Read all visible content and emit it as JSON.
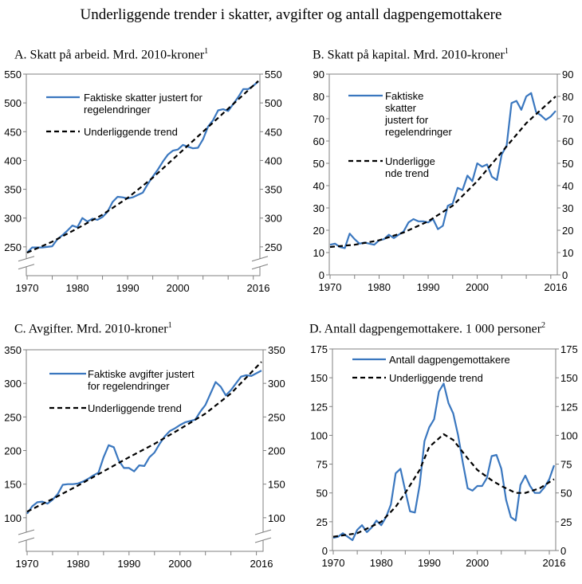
{
  "title": "Underliggende trender i skatter, avgifter og antall dagpengemottakere",
  "colors": {
    "actual": "#3a77bf",
    "trend": "#000000",
    "axis": "#808080"
  },
  "chart_data": [
    {
      "type": "line",
      "title": "A.  Skatt på arbeid. Mrd. 2010-kroner",
      "title_footnote": "1",
      "xlim": [
        1970,
        2016
      ],
      "x_tick_labels": [
        "1970",
        "1980",
        "1990",
        "2000",
        "2016"
      ],
      "ylim": [
        200,
        550
      ],
      "y_ticks": [
        250,
        300,
        350,
        400,
        450,
        500,
        550
      ],
      "axis_break": true,
      "grid": false,
      "dual_y_axis": true,
      "legend_position": "top-left",
      "series": [
        {
          "name": "Faktiske skatter justert for regelendringer",
          "style": "solid",
          "x": [
            1970,
            1971,
            1972,
            1973,
            1974,
            1975,
            1976,
            1977,
            1978,
            1979,
            1980,
            1981,
            1982,
            1983,
            1984,
            1985,
            1986,
            1987,
            1988,
            1989,
            1990,
            1991,
            1992,
            1993,
            1994,
            1995,
            1996,
            1997,
            1998,
            1999,
            2000,
            2001,
            2002,
            2003,
            2004,
            2005,
            2006,
            2007,
            2008,
            2009,
            2010,
            2011,
            2012,
            2013,
            2014,
            2015,
            2016
          ],
          "y": [
            240,
            249,
            249,
            249,
            250,
            251,
            263,
            270,
            278,
            287,
            284,
            300,
            294,
            299,
            297,
            302,
            311,
            328,
            337,
            336,
            334,
            336,
            340,
            344,
            359,
            372,
            384,
            398,
            410,
            417,
            419,
            427,
            424,
            421,
            422,
            437,
            459,
            470,
            487,
            489,
            486,
            498,
            510,
            524,
            524,
            530,
            537
          ]
        },
        {
          "name": "Underliggende trend",
          "style": "dashed",
          "x": [
            1970,
            1975,
            1980,
            1985,
            1990,
            1995,
            2000,
            2005,
            2010,
            2016
          ],
          "y": [
            240,
            259,
            282,
            306,
            335,
            370,
            410,
            450,
            490,
            538
          ]
        }
      ]
    },
    {
      "type": "line",
      "title": "B.  Skatt på kapital. Mrd. 2010-kroner",
      "title_footnote": "1",
      "xlim": [
        1970,
        2016
      ],
      "x_tick_labels": [
        "1970",
        "1980",
        "1990",
        "2000",
        "2016"
      ],
      "ylim": [
        0,
        90
      ],
      "y_ticks": [
        0,
        10,
        20,
        30,
        40,
        50,
        60,
        70,
        80,
        90
      ],
      "axis_break": false,
      "grid": false,
      "dual_y_axis": true,
      "legend_position": "top-left",
      "series": [
        {
          "name": "Faktiske skatter justert for regelendringer",
          "style": "solid",
          "x": [
            1970,
            1971,
            1972,
            1973,
            1974,
            1975,
            1976,
            1977,
            1978,
            1979,
            1980,
            1981,
            1982,
            1983,
            1984,
            1985,
            1986,
            1987,
            1988,
            1989,
            1990,
            1991,
            1992,
            1993,
            1994,
            1995,
            1996,
            1997,
            1998,
            1999,
            2000,
            2001,
            2002,
            2003,
            2004,
            2005,
            2006,
            2007,
            2008,
            2009,
            2010,
            2011,
            2012,
            2013,
            2014,
            2015,
            2016
          ],
          "y": [
            13.5,
            14,
            12.5,
            12,
            18.5,
            16,
            14,
            14.5,
            14,
            13.5,
            15.5,
            16,
            18,
            16.5,
            18,
            19.5,
            23.5,
            25,
            24,
            24,
            23.5,
            25,
            20.5,
            22,
            31,
            32,
            39,
            38,
            44.5,
            42,
            50,
            48.5,
            49.5,
            44,
            42.5,
            54,
            58,
            77,
            78,
            74,
            80,
            81.5,
            73,
            71.5,
            69.5,
            71,
            73.5
          ]
        },
        {
          "name": "Underliggende trend",
          "style": "dashed",
          "x": [
            1970,
            1975,
            1980,
            1985,
            1990,
            1995,
            2000,
            2005,
            2010,
            2013,
            2016
          ],
          "y": [
            12.5,
            13.5,
            15.5,
            19,
            24,
            31,
            42,
            55,
            68,
            74,
            80
          ]
        }
      ]
    },
    {
      "type": "line",
      "title": "C.  Avgifter. Mrd. 2010-kroner",
      "title_footnote": "1",
      "xlim": [
        1970,
        2016
      ],
      "x_tick_labels": [
        "1970",
        "1980",
        "1990",
        "2000",
        "2016"
      ],
      "ylim": [
        50,
        350
      ],
      "y_ticks": [
        100,
        150,
        200,
        250,
        300,
        350
      ],
      "axis_break": true,
      "grid": false,
      "dual_y_axis": true,
      "legend_position": "top-left",
      "series": [
        {
          "name": "Faktiske avgifter justert for regelendringer",
          "style": "solid",
          "x": [
            1970,
            1971,
            1972,
            1973,
            1974,
            1975,
            1976,
            1977,
            1978,
            1979,
            1980,
            1981,
            1982,
            1983,
            1984,
            1985,
            1986,
            1987,
            1988,
            1989,
            1990,
            1991,
            1992,
            1993,
            1994,
            1995,
            1996,
            1997,
            1998,
            1999,
            2000,
            2001,
            2002,
            2003,
            2004,
            2005,
            2006,
            2007,
            2008,
            2009,
            2010,
            2011,
            2012,
            2013,
            2014,
            2015,
            2016
          ],
          "y": [
            106,
            117,
            123,
            124,
            121,
            127,
            135,
            149,
            150,
            150,
            151,
            154,
            158,
            163,
            167,
            190,
            208,
            205,
            185,
            174,
            174,
            169,
            178,
            177,
            190,
            197,
            210,
            221,
            229,
            233,
            238,
            242,
            244,
            246,
            258,
            268,
            285,
            302,
            295,
            282,
            290,
            300,
            310,
            312,
            311,
            315,
            319
          ]
        },
        {
          "name": "Underliggende trend",
          "style": "dashed",
          "x": [
            1970,
            1975,
            1980,
            1985,
            1990,
            1995,
            2000,
            2005,
            2010,
            2016
          ],
          "y": [
            109,
            128,
            148,
            169,
            190,
            210,
            232,
            255,
            285,
            332
          ]
        }
      ]
    },
    {
      "type": "line",
      "title": "D.  Antall dagpengemottakere. 1 000 personer",
      "title_footnote": "2",
      "xlim": [
        1970,
        2016
      ],
      "x_tick_labels": [
        "1970",
        "1980",
        "1990",
        "2000",
        "2016"
      ],
      "ylim": [
        0,
        175
      ],
      "y_ticks": [
        0,
        25,
        50,
        75,
        100,
        125,
        150,
        175
      ],
      "axis_break": false,
      "grid": false,
      "dual_y_axis": true,
      "legend_position": "top-left",
      "series": [
        {
          "name": "Antall dagpengemottakere",
          "style": "solid",
          "x": [
            1970,
            1971,
            1972,
            1973,
            1974,
            1975,
            1976,
            1977,
            1978,
            1979,
            1980,
            1981,
            1982,
            1983,
            1984,
            1985,
            1986,
            1987,
            1988,
            1989,
            1990,
            1991,
            1992,
            1993,
            1994,
            1995,
            1996,
            1997,
            1998,
            1999,
            2000,
            2001,
            2002,
            2003,
            2004,
            2005,
            2006,
            2007,
            2008,
            2009,
            2010,
            2011,
            2012,
            2013,
            2014,
            2015,
            2016
          ],
          "y": [
            11,
            12,
            15,
            12,
            9,
            18,
            22,
            16,
            20,
            26,
            22,
            29,
            40,
            67,
            71,
            52,
            34,
            33,
            57,
            95,
            107,
            114,
            138,
            145,
            128,
            119,
            100,
            76,
            54,
            52,
            56,
            56,
            63,
            82,
            83,
            71,
            44,
            29,
            26,
            57,
            65,
            56,
            50,
            50,
            55,
            62,
            74
          ]
        },
        {
          "name": "Underliggende trend",
          "style": "dashed",
          "x": [
            1970,
            1975,
            1980,
            1983,
            1985,
            1988,
            1990,
            1993,
            1995,
            1998,
            2000,
            2003,
            2005,
            2008,
            2010,
            2013,
            2016
          ],
          "y": [
            12,
            15,
            25,
            38,
            50,
            70,
            90,
            101,
            96,
            80,
            70,
            61,
            56,
            50,
            50,
            54,
            62
          ]
        }
      ]
    }
  ]
}
